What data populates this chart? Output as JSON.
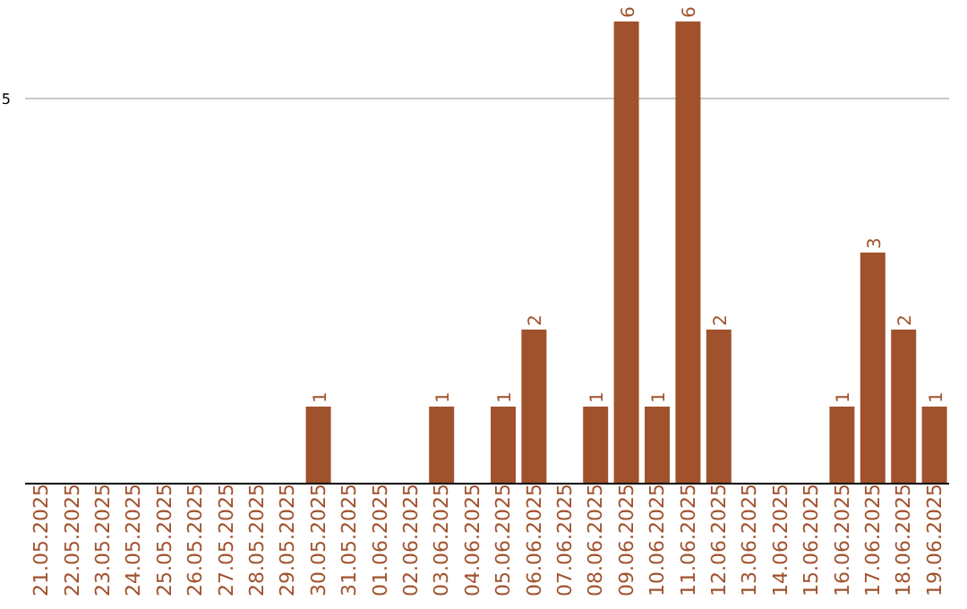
{
  "chart_data": {
    "type": "bar",
    "categories": [
      "21.05.2025",
      "22.05.2025",
      "23.05.2025",
      "24.05.2025",
      "25.05.2025",
      "26.05.2025",
      "27.05.2025",
      "28.05.2025",
      "29.05.2025",
      "30.05.2025",
      "31.05.2025",
      "01.06.2025",
      "02.06.2025",
      "03.06.2025",
      "04.06.2025",
      "05.06.2025",
      "06.06.2025",
      "07.06.2025",
      "08.06.2025",
      "09.06.2025",
      "10.06.2025",
      "11.06.2025",
      "12.06.2025",
      "13.06.2025",
      "14.06.2025",
      "15.06.2025",
      "16.06.2025",
      "17.06.2025",
      "18.06.2025",
      "19.06.2025"
    ],
    "values": [
      0,
      0,
      0,
      0,
      0,
      0,
      0,
      0,
      0,
      1,
      0,
      0,
      0,
      1,
      0,
      1,
      2,
      0,
      1,
      6,
      1,
      6,
      2,
      0,
      0,
      0,
      1,
      3,
      2,
      1
    ],
    "value_labels": [
      null,
      null,
      null,
      null,
      null,
      null,
      null,
      null,
      null,
      "1",
      null,
      null,
      null,
      "1",
      null,
      "1",
      "2",
      null,
      "1",
      "6",
      "1",
      "6",
      "2",
      null,
      null,
      null,
      "1",
      "3",
      "2",
      "1"
    ],
    "color": "#a0522d",
    "ylim": [
      0,
      6
    ],
    "yticks": [
      5
    ],
    "grid": "y"
  }
}
